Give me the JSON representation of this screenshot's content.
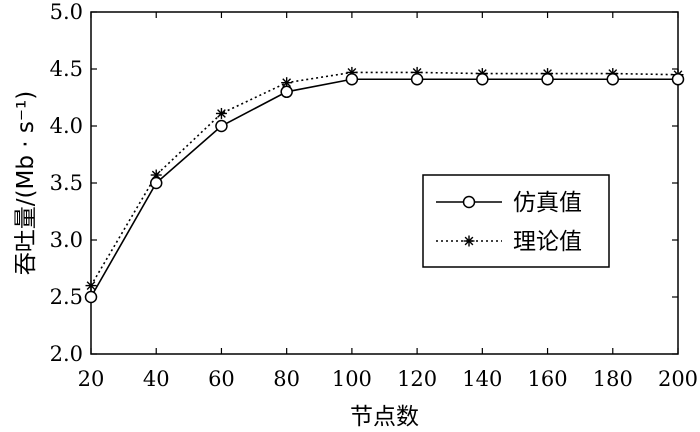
{
  "chart_data": {
    "type": "line",
    "title": "",
    "xlabel": "节点数",
    "ylabel": "吞吐量/(Mb · s⁻¹)",
    "x": [
      20,
      40,
      60,
      80,
      100,
      120,
      140,
      160,
      180,
      200
    ],
    "xlim": [
      20,
      200
    ],
    "ylim": [
      2.0,
      5.0
    ],
    "xticks": [
      "20",
      "40",
      "60",
      "80",
      "100",
      "120",
      "140",
      "160",
      "180",
      "200"
    ],
    "yticks": [
      "2.0",
      "2.5",
      "3.0",
      "3.5",
      "4.0",
      "4.5",
      "5.0"
    ],
    "grid": false,
    "legend_position": "right-center",
    "series": [
      {
        "name": "仿真值",
        "style": "solid",
        "marker": "circle",
        "color": "#000000",
        "values": [
          2.5,
          3.5,
          4.0,
          4.3,
          4.41,
          4.41,
          4.41,
          4.41,
          4.41,
          4.41
        ]
      },
      {
        "name": "理论值",
        "style": "dotted",
        "marker": "asterisk",
        "color": "#000000",
        "values": [
          2.6,
          3.57,
          4.11,
          4.38,
          4.47,
          4.47,
          4.46,
          4.46,
          4.46,
          4.45
        ]
      }
    ]
  }
}
